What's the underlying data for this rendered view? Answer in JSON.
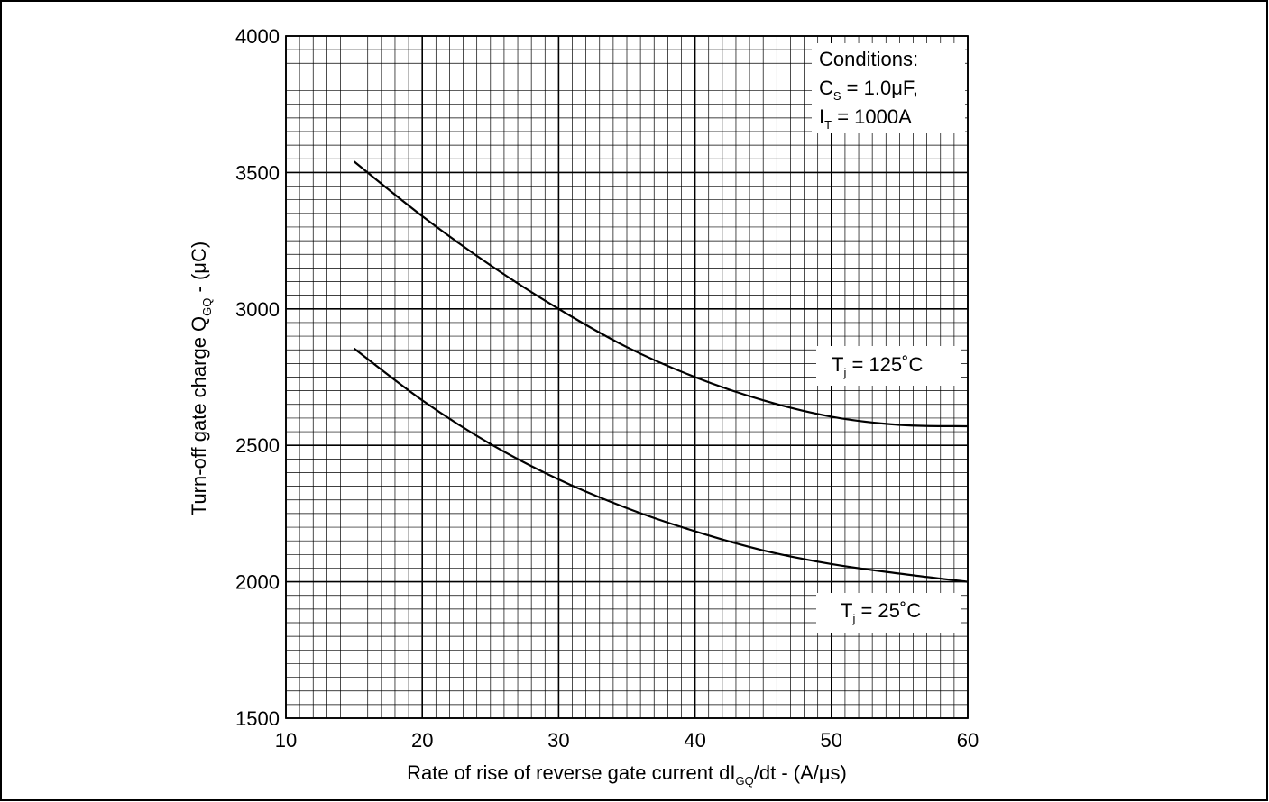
{
  "chart_data": {
    "type": "line",
    "title": "",
    "xlabel": {
      "main": "Rate of rise of reverse gate current dI",
      "sub": "GQ",
      "tail": "/dt - (A/μs)"
    },
    "ylabel": {
      "main": "Turn-off gate charge Q",
      "sub": "GQ",
      "tail": " - (μC)"
    },
    "xlim": [
      10,
      60
    ],
    "ylim": [
      1500,
      4000
    ],
    "x_ticks": [
      "10",
      "20",
      "30",
      "40",
      "50",
      "60"
    ],
    "y_ticks": [
      "1500",
      "2000",
      "2500",
      "3000",
      "3500",
      "4000"
    ],
    "grid": true,
    "conditions": {
      "line1": "Conditions:",
      "line2_main": "C",
      "line2_sub": "S",
      "line2_tail": " = 1.0μF,",
      "line3_main": "I",
      "line3_sub": "T",
      "line3_tail": " = 1000A"
    },
    "series": [
      {
        "name": "T_j = 125˚C",
        "label_main": "T",
        "label_sub": "j",
        "label_tail": " = 125˚C",
        "x": [
          15,
          20,
          25,
          30,
          35,
          40,
          45,
          50,
          55,
          60
        ],
        "y": [
          3540,
          3340,
          3160,
          3000,
          2860,
          2750,
          2665,
          2605,
          2575,
          2570
        ]
      },
      {
        "name": "T_j = 25˚C",
        "label_main": "T",
        "label_sub": "j",
        "label_tail": " = 25˚C",
        "x": [
          15,
          20,
          25,
          30,
          35,
          40,
          45,
          50,
          55,
          60
        ],
        "y": [
          2855,
          2665,
          2505,
          2375,
          2270,
          2185,
          2115,
          2065,
          2030,
          2000
        ]
      }
    ]
  }
}
